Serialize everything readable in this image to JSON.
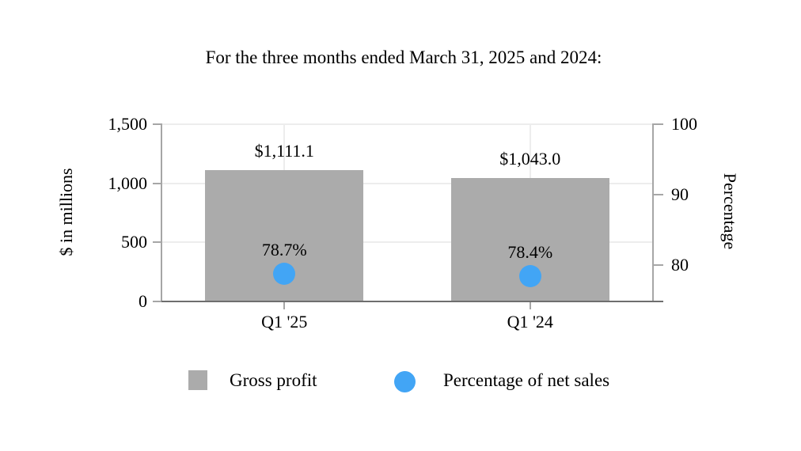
{
  "title": "For the three months ended March 31, 2025 and 2024:",
  "chart_data": {
    "type": "bar",
    "categories": [
      "Q1 '25",
      "Q1 '24"
    ],
    "series": [
      {
        "name": "Gross profit",
        "kind": "bar",
        "axis": "left",
        "color": "#ABABAB",
        "values": [
          1111.1,
          1043.0
        ],
        "value_labels": [
          "$1,111.1",
          "$1,043.0"
        ]
      },
      {
        "name": "Percentage of net sales",
        "kind": "point",
        "axis": "right",
        "color": "#42A5F5",
        "values": [
          78.7,
          78.4
        ],
        "value_labels": [
          "78.7%",
          "78.4%"
        ]
      }
    ],
    "left_axis": {
      "label": "$ in millions",
      "min": 0,
      "max": 1500,
      "tick_values": [
        1500,
        1000,
        500,
        0
      ],
      "tick_labels": [
        "1,500",
        "1,000",
        "500",
        "0"
      ]
    },
    "right_axis": {
      "label": "Percentage",
      "min": 74.8,
      "max": 100,
      "tick_values": [
        100,
        90,
        80
      ],
      "tick_labels": [
        "100",
        "90",
        "80"
      ]
    },
    "legend": [
      {
        "label": "Gross profit",
        "swatch": "square",
        "color": "#ABABAB"
      },
      {
        "label": "Percentage of net sales",
        "swatch": "circle",
        "color": "#42A5F5"
      }
    ],
    "grid": true,
    "legend_position": "bottom"
  }
}
